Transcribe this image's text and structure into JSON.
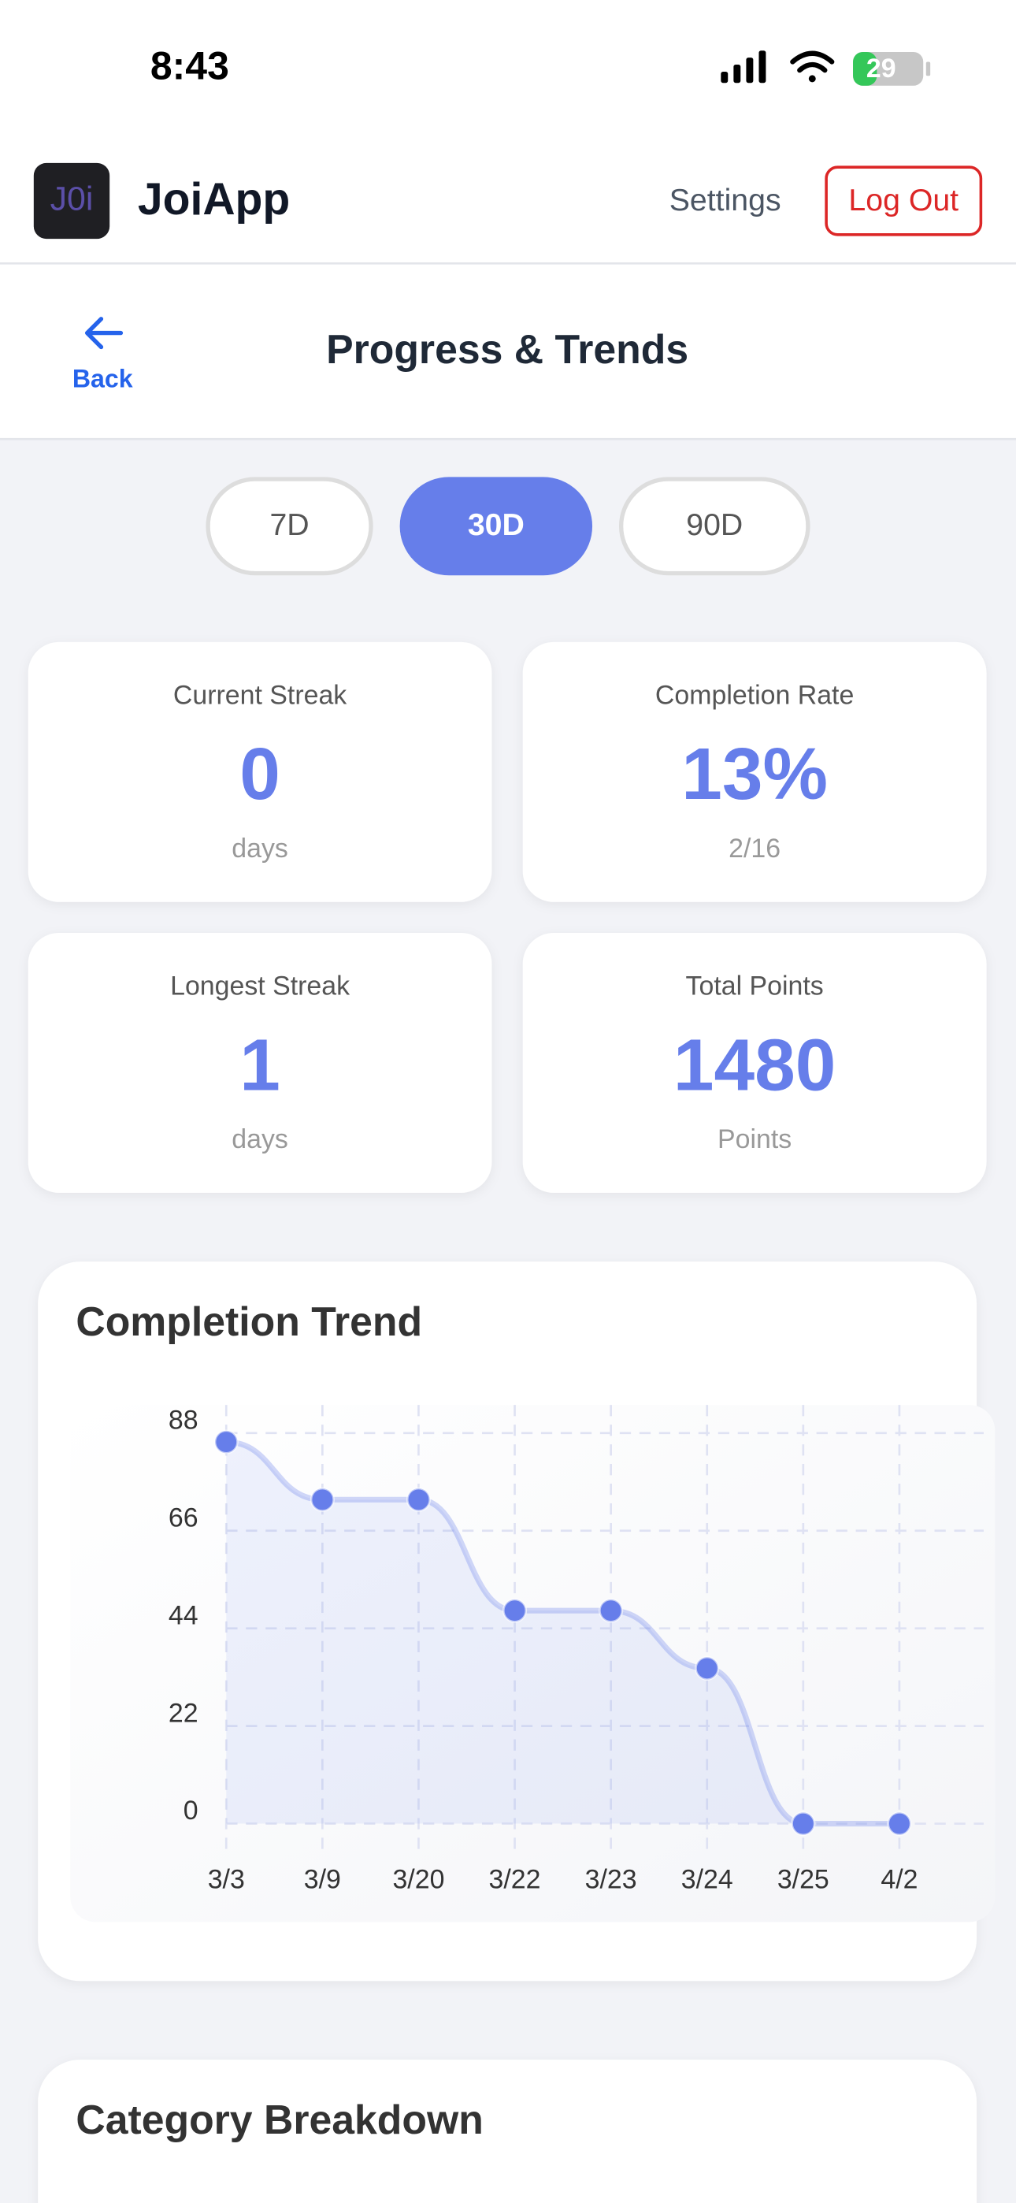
{
  "status_bar": {
    "time": "8:43",
    "battery": "29"
  },
  "header": {
    "logo": "J0i",
    "app_name": "JoiApp",
    "settings": "Settings",
    "logout": "Log Out"
  },
  "nav": {
    "back": "Back",
    "title": "Progress & Trends"
  },
  "range_tabs": {
    "options": [
      "7D",
      "30D",
      "90D"
    ],
    "selected": 1
  },
  "stats": [
    {
      "label": "Current Streak",
      "value": "0",
      "sub": "days"
    },
    {
      "label": "Completion Rate",
      "value": "13%",
      "sub": "2/16"
    },
    {
      "label": "Longest Streak",
      "value": "1",
      "sub": "days"
    },
    {
      "label": "Total Points",
      "value": "1480",
      "sub": "Points"
    }
  ],
  "chart_data": {
    "type": "line",
    "title": "Completion Trend",
    "categories": [
      "3/3",
      "3/9",
      "3/20",
      "3/22",
      "3/23",
      "3/24",
      "3/25",
      "4/2"
    ],
    "values": [
      86,
      73,
      73,
      48,
      48,
      35,
      0,
      0
    ],
    "color": "#667eea",
    "ylim": [
      0,
      88
    ],
    "yticks": [
      0,
      22,
      44,
      66,
      88
    ],
    "grid": true,
    "area": true
  },
  "category_breakdown": {
    "title": "Category Breakdown"
  }
}
